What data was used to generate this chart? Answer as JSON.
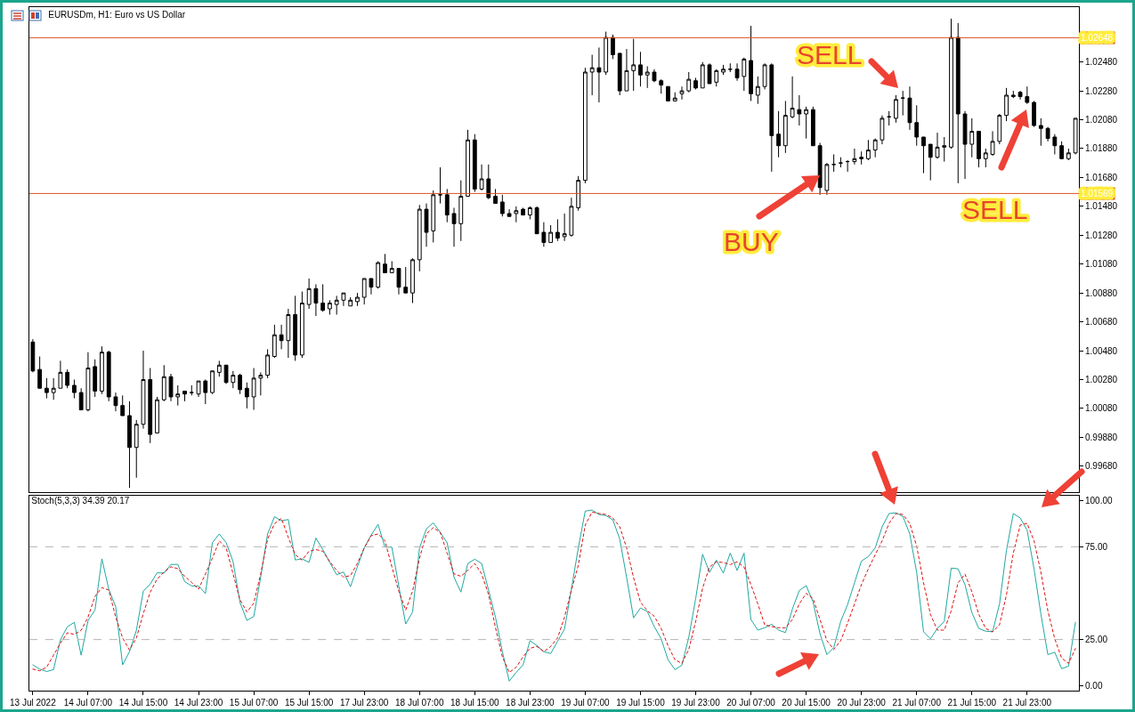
{
  "chart_data": [
    {
      "type": "candlestick",
      "title": "EURUSDm, H1: Euro vs US Dollar",
      "tick_labels": "y",
      "color": "#000000",
      "categories": [
        null,
        null,
        null,
        null,
        null,
        null,
        null,
        null,
        null,
        null,
        null,
        null,
        null,
        null,
        null,
        null,
        null,
        null,
        null,
        null,
        null,
        null,
        null,
        null,
        null,
        null,
        null,
        null,
        null,
        null,
        null,
        null,
        null,
        null,
        null,
        null,
        null,
        null,
        null,
        null,
        null,
        null,
        null,
        null,
        null,
        null,
        null,
        null,
        null,
        null,
        null,
        null,
        null,
        null,
        null,
        null,
        null,
        null,
        null,
        null,
        null,
        null,
        null,
        null,
        null,
        null,
        null,
        null,
        null,
        null,
        null,
        null,
        null,
        null,
        null,
        null,
        null,
        null,
        null,
        null,
        null,
        null,
        null,
        null,
        null,
        null,
        null,
        null,
        null,
        null,
        null,
        null,
        null,
        null,
        null,
        null,
        null,
        null,
        null,
        null,
        null,
        null,
        null,
        null,
        null,
        null,
        null,
        null,
        null,
        null,
        null,
        null,
        null,
        null,
        null,
        null,
        null,
        null,
        null,
        null,
        null,
        null,
        null,
        null,
        null,
        null,
        null,
        null,
        null,
        null,
        null,
        null,
        null,
        null,
        null,
        null,
        null,
        null,
        null,
        null,
        null,
        null,
        null,
        null,
        null,
        null,
        null,
        null,
        null,
        null,
        null,
        null
      ],
      "ohlc": [
        [
          1.0054,
          1.0056,
          1.0033,
          1.0034
        ],
        [
          1.0035,
          1.0044,
          1.0022,
          1.0022
        ],
        [
          1.0022,
          1.0029,
          1.0015,
          1.0019
        ],
        [
          1.0019,
          1.0029,
          1.0014,
          1.0022
        ],
        [
          1.0022,
          1.0041,
          1.0022,
          1.0033
        ],
        [
          1.0033,
          1.0035,
          1.0022,
          1.0024
        ],
        [
          1.0024,
          1.0028,
          1.0015,
          1.0019
        ],
        [
          1.0019,
          1.0022,
          1.0007,
          1.0007
        ],
        [
          1.0007,
          1.0047,
          1.0006,
          1.0036
        ],
        [
          1.0037,
          1.0042,
          1.0016,
          1.002
        ],
        [
          1.002,
          1.0051,
          1.0018,
          1.0047
        ],
        [
          1.0047,
          1.0048,
          1.0013,
          1.0016
        ],
        [
          1.0016,
          1.0019,
          1.0006,
          1.001
        ],
        [
          1.001,
          1.0017,
          1.0003,
          1.0003
        ],
        [
          1.0003,
          1.0013,
          0.9953,
          0.9981
        ],
        [
          0.9981,
          1.0,
          0.996,
          0.9997
        ],
        [
          0.9997,
          1.0048,
          0.9994,
          1.0028
        ],
        [
          1.0028,
          1.0036,
          0.9984,
          0.999
        ],
        [
          0.9991,
          1.0016,
          0.9991,
          1.0014
        ],
        [
          1.0014,
          1.0038,
          1.0013,
          1.003
        ],
        [
          1.003,
          1.0032,
          1.0013,
          1.0016
        ],
        [
          1.0016,
          1.0024,
          1.001,
          1.0018
        ],
        [
          1.002,
          1.002,
          1.0013,
          1.0018
        ],
        [
          1.0019,
          1.0024,
          1.0017,
          1.0019
        ],
        [
          1.0018,
          1.0027,
          1.0016,
          1.0027
        ],
        [
          1.0027,
          1.0028,
          1.0011,
          1.0019
        ],
        [
          1.0019,
          1.0034,
          1.0018,
          1.0034
        ],
        [
          1.0033,
          1.0041,
          1.003,
          1.0038
        ],
        [
          1.0038,
          1.0038,
          1.0025,
          1.0026
        ],
        [
          1.0026,
          1.0034,
          1.0022,
          1.0031
        ],
        [
          1.0031,
          1.0032,
          1.0018,
          1.0021
        ],
        [
          1.0022,
          1.0026,
          1.0008,
          1.0016
        ],
        [
          1.0016,
          1.0036,
          1.0007,
          1.0029
        ],
        [
          1.0029,
          1.0033,
          1.0017,
          1.0031
        ],
        [
          1.0031,
          1.0049,
          1.0029,
          1.0045
        ],
        [
          1.0044,
          1.0066,
          1.0043,
          1.0059
        ],
        [
          1.0059,
          1.0066,
          1.0049,
          1.0055
        ],
        [
          1.0055,
          1.0077,
          1.0043,
          1.0073
        ],
        [
          1.0073,
          1.0086,
          1.0041,
          1.0045
        ],
        [
          1.0045,
          1.0089,
          1.0043,
          1.0081
        ],
        [
          1.008,
          1.0098,
          1.0077,
          1.0091
        ],
        [
          1.0091,
          1.0094,
          1.0072,
          1.0081
        ],
        [
          1.0081,
          1.0094,
          1.0075,
          1.0076
        ],
        [
          1.0077,
          1.0083,
          1.0073,
          1.0081
        ],
        [
          1.008,
          1.0086,
          1.0073,
          1.0083
        ],
        [
          1.0083,
          1.0088,
          1.0079,
          1.0088
        ],
        [
          1.0079,
          1.0085,
          1.0079,
          1.0083
        ],
        [
          1.0082,
          1.0088,
          1.0079,
          1.0085
        ],
        [
          1.0085,
          1.0098,
          1.008,
          1.0098
        ],
        [
          1.0098,
          1.0098,
          1.0087,
          1.0092
        ],
        [
          1.0092,
          1.011,
          1.0091,
          1.0109
        ],
        [
          1.0108,
          1.0115,
          1.0102,
          1.0102
        ],
        [
          1.0102,
          1.011,
          1.0102,
          1.0105
        ],
        [
          1.0105,
          1.0105,
          1.0087,
          1.0092
        ],
        [
          1.0092,
          1.0106,
          1.0088,
          1.0088
        ],
        [
          1.0088,
          1.0112,
          1.0081,
          1.0111
        ],
        [
          1.0111,
          1.0149,
          1.0103,
          1.0146
        ],
        [
          1.0146,
          1.015,
          1.012,
          1.013
        ],
        [
          1.0131,
          1.0159,
          1.0123,
          1.0156
        ],
        [
          1.0156,
          1.0175,
          1.015,
          1.0156
        ],
        [
          1.0156,
          1.016,
          1.0137,
          1.0142
        ],
        [
          1.0143,
          1.0147,
          1.012,
          1.0136
        ],
        [
          1.0136,
          1.0166,
          1.0124,
          1.0155
        ],
        [
          1.0155,
          1.0201,
          1.0155,
          1.0194
        ],
        [
          1.0194,
          1.0198,
          1.0158,
          1.016
        ],
        [
          1.016,
          1.0177,
          1.0159,
          1.0167
        ],
        [
          1.0167,
          1.0177,
          1.0153,
          1.0154
        ],
        [
          1.0155,
          1.016,
          1.015,
          1.015
        ],
        [
          1.0151,
          1.0156,
          1.0141,
          1.0143
        ],
        [
          1.0143,
          1.0146,
          1.0141,
          1.0141
        ],
        [
          1.0143,
          1.0148,
          1.0137,
          1.0145
        ],
        [
          1.0146,
          1.0147,
          1.0142,
          1.0142
        ],
        [
          1.0142,
          1.0148,
          1.0139,
          1.0147
        ],
        [
          1.0147,
          1.0148,
          1.0129,
          1.0129
        ],
        [
          1.013,
          1.0137,
          1.012,
          1.0123
        ],
        [
          1.0123,
          1.0135,
          1.0123,
          1.013
        ],
        [
          1.013,
          1.0139,
          1.0124,
          1.0126
        ],
        [
          1.0127,
          1.0143,
          1.0124,
          1.0129
        ],
        [
          1.0128,
          1.0154,
          1.0127,
          1.0148
        ],
        [
          1.0147,
          1.0169,
          1.0145,
          1.0166
        ],
        [
          1.0166,
          1.0244,
          1.0164,
          1.0241
        ],
        [
          1.0241,
          1.0253,
          1.0225,
          1.0244
        ],
        [
          1.0244,
          1.0258,
          1.022,
          1.0241
        ],
        [
          1.0241,
          1.0269,
          1.0239,
          1.0265
        ],
        [
          1.0265,
          1.0267,
          1.025,
          1.0253
        ],
        [
          1.0254,
          1.0254,
          1.0225,
          1.0228
        ],
        [
          1.0228,
          1.0257,
          1.0228,
          1.0242
        ],
        [
          1.0242,
          1.0264,
          1.0228,
          1.0246
        ],
        [
          1.0246,
          1.0255,
          1.0231,
          1.0239
        ],
        [
          1.0239,
          1.0245,
          1.023,
          1.0241
        ],
        [
          1.0241,
          1.0243,
          1.0234,
          1.0235
        ],
        [
          1.0235,
          1.0236,
          1.0226,
          1.0232
        ],
        [
          1.0231,
          1.0231,
          1.0221,
          1.0221
        ],
        [
          1.0221,
          1.0227,
          1.0221,
          1.0223
        ],
        [
          1.0226,
          1.0231,
          1.0222,
          1.0228
        ],
        [
          1.0228,
          1.0241,
          1.0227,
          1.0236
        ],
        [
          1.0235,
          1.0237,
          1.0229,
          1.023
        ],
        [
          1.023,
          1.0248,
          1.023,
          1.0246
        ],
        [
          1.0246,
          1.0247,
          1.0233,
          1.0233
        ],
        [
          1.0234,
          1.0243,
          1.0231,
          1.0242
        ],
        [
          1.0241,
          1.0246,
          1.0239,
          1.0243
        ],
        [
          1.0243,
          1.0247,
          1.0241,
          1.0243
        ],
        [
          1.0243,
          1.0247,
          1.0235,
          1.0237
        ],
        [
          1.0238,
          1.0251,
          1.0228,
          1.025
        ],
        [
          1.0249,
          1.0273,
          1.0221,
          1.0226
        ],
        [
          1.0225,
          1.0238,
          1.0219,
          1.0231
        ],
        [
          1.0231,
          1.0247,
          1.0229,
          1.0246
        ],
        [
          1.0246,
          1.0247,
          1.0172,
          1.0197
        ],
        [
          1.0198,
          1.0214,
          1.0182,
          1.019
        ],
        [
          1.019,
          1.0221,
          1.0185,
          1.0211
        ],
        [
          1.021,
          1.0238,
          1.0209,
          1.0216
        ],
        [
          1.0215,
          1.0225,
          1.0204,
          1.0212
        ],
        [
          1.0212,
          1.0217,
          1.0195,
          1.0215
        ],
        [
          1.0215,
          1.0217,
          1.019,
          1.019
        ],
        [
          1.019,
          1.0192,
          1.0156,
          1.0161
        ],
        [
          1.0159,
          1.0178,
          1.0156,
          1.0177
        ],
        [
          1.0177,
          1.0184,
          1.0172,
          1.0177
        ],
        [
          1.0178,
          1.0182,
          1.0175,
          1.0178
        ],
        [
          1.0179,
          1.018,
          1.0172,
          1.0179
        ],
        [
          1.0179,
          1.0188,
          1.0177,
          1.0181
        ],
        [
          1.0182,
          1.0186,
          1.0177,
          1.0181
        ],
        [
          1.0181,
          1.0194,
          1.018,
          1.0187
        ],
        [
          1.0187,
          1.0195,
          1.0182,
          1.0194
        ],
        [
          1.0194,
          1.0211,
          1.0191,
          1.0209
        ],
        [
          1.021,
          1.0214,
          1.0204,
          1.021
        ],
        [
          1.0209,
          1.0225,
          1.0206,
          1.0222
        ],
        [
          1.0223,
          1.0228,
          1.0211,
          1.0223
        ],
        [
          1.0223,
          1.0231,
          1.0201,
          1.0206
        ],
        [
          1.0206,
          1.0218,
          1.019,
          1.0196
        ],
        [
          1.0196,
          1.0196,
          1.0171,
          1.019
        ],
        [
          1.0191,
          1.0191,
          1.0166,
          1.0182
        ],
        [
          1.0182,
          1.0199,
          1.0181,
          1.0189
        ],
        [
          1.0189,
          1.0196,
          1.0179,
          1.019
        ],
        [
          1.0189,
          1.0278,
          1.0188,
          1.0265
        ],
        [
          1.0265,
          1.0275,
          1.0164,
          1.0212
        ],
        [
          1.0212,
          1.0214,
          1.0167,
          1.0191
        ],
        [
          1.0191,
          1.0209,
          1.0182,
          1.02
        ],
        [
          1.02,
          1.02,
          1.0175,
          1.0181
        ],
        [
          1.0181,
          1.0188,
          1.0175,
          1.0185
        ],
        [
          1.0184,
          1.02,
          1.0183,
          1.0193
        ],
        [
          1.0193,
          1.0212,
          1.0191,
          1.0211
        ],
        [
          1.0211,
          1.023,
          1.0207,
          1.0225
        ],
        [
          1.0224,
          1.0228,
          1.0223,
          1.0225
        ],
        [
          1.0227,
          1.0228,
          1.0222,
          1.0224
        ],
        [
          1.0224,
          1.0231,
          1.0219,
          1.022
        ],
        [
          1.022,
          1.0221,
          1.0203,
          1.0204
        ],
        [
          1.0204,
          1.0209,
          1.019,
          1.0202
        ],
        [
          1.0202,
          1.0203,
          1.0193,
          1.0195
        ],
        [
          1.0196,
          1.0198,
          1.0184,
          1.019
        ],
        [
          1.019,
          1.0193,
          1.0181,
          1.0181
        ],
        [
          1.0181,
          1.0188,
          1.018,
          1.0185
        ],
        [
          1.0185,
          1.0209,
          1.0184,
          1.0209
        ]
      ],
      "ylim": [
        0.995,
        1.0286
      ],
      "yticks": [
        {
          "value": 0.9968,
          "label": "0.99680"
        },
        {
          "value": 0.9988,
          "label": "0.99880"
        },
        {
          "value": 1.0008,
          "label": "1.00080"
        },
        {
          "value": 1.0028,
          "label": "1.00280"
        },
        {
          "value": 1.0048,
          "label": "1.00480"
        },
        {
          "value": 1.0068,
          "label": "1.00680"
        },
        {
          "value": 1.0088,
          "label": "1.00880"
        },
        {
          "value": 1.0108,
          "label": "1.01080"
        },
        {
          "value": 1.0128,
          "label": "1.01280"
        },
        {
          "value": 1.0148,
          "label": "1.01480"
        },
        {
          "value": 1.0168,
          "label": "1.01680"
        },
        {
          "value": 1.0188,
          "label": "1.01880"
        },
        {
          "value": 1.0208,
          "label": "1.02080"
        },
        {
          "value": 1.0228,
          "label": "1.02280"
        },
        {
          "value": 1.0248,
          "label": "1.02480"
        }
      ],
      "ref_lines": [
        {
          "axis": "y",
          "value": 1.02648,
          "label": "1.02648",
          "color": "#d9541e"
        },
        {
          "axis": "y",
          "value": 1.01569,
          "label": "1.01569",
          "color": "#d9541e"
        }
      ],
      "annotations": [
        "SELL",
        "BUY",
        "SELL"
      ]
    },
    {
      "type": "line",
      "title": "Stoch(5,3,3) 34.39 20.17",
      "categories": [
        "13 Jul 2022",
        null,
        null,
        null,
        null,
        null,
        null,
        null,
        "14 Jul 07:00",
        null,
        null,
        null,
        null,
        null,
        null,
        null,
        "14 Jul 15:00",
        null,
        null,
        null,
        null,
        null,
        null,
        null,
        "14 Jul 23:00",
        null,
        null,
        null,
        null,
        null,
        null,
        null,
        "15 Jul 07:00",
        null,
        null,
        null,
        null,
        null,
        null,
        null,
        "15 Jul 15:00",
        null,
        null,
        null,
        null,
        null,
        null,
        null,
        "17 Jul 23:00",
        null,
        null,
        null,
        null,
        null,
        null,
        null,
        "18 Jul 07:00",
        null,
        null,
        null,
        null,
        null,
        null,
        null,
        "18 Jul 15:00",
        null,
        null,
        null,
        null,
        null,
        null,
        null,
        "18 Jul 23:00",
        null,
        null,
        null,
        null,
        null,
        null,
        null,
        "19 Jul 07:00",
        null,
        null,
        null,
        null,
        null,
        null,
        null,
        "19 Jul 15:00",
        null,
        null,
        null,
        null,
        null,
        null,
        null,
        "19 Jul 23:00",
        null,
        null,
        null,
        null,
        null,
        null,
        null,
        "20 Jul 07:00",
        null,
        null,
        null,
        null,
        null,
        null,
        null,
        "20 Jul 15:00",
        null,
        null,
        null,
        null,
        null,
        null,
        null,
        "20 Jul 23:00",
        null,
        null,
        null,
        null,
        null,
        null,
        null,
        "21 Jul 07:00",
        null,
        null,
        null,
        null,
        null,
        null,
        null,
        "21 Jul 15:00",
        null,
        null,
        null,
        null,
        null,
        null,
        null,
        "21 Jul 23:00",
        null,
        null,
        null,
        null,
        null,
        null,
        null
      ],
      "series": [
        {
          "color": "#20a8a0",
          "line_style": "solid",
          "values": [
            11.4,
            9.1,
            7.8,
            8.8,
            25.0,
            31.9,
            34.3,
            16.6,
            35.3,
            40.9,
            68.5,
            52.1,
            42.7,
            11.4,
            18.5,
            30.0,
            51.1,
            54.9,
            61.0,
            60.8,
            65.5,
            65.5,
            56.2,
            53.9,
            53.9,
            49.8,
            77.2,
            81.9,
            77.2,
            67.0,
            45.0,
            35.3,
            37.5,
            58.6,
            81.9,
            91.2,
            89.0,
            89.7,
            67.9,
            68.5,
            66.6,
            79.7,
            73.5,
            66.6,
            59.9,
            61.4,
            53.5,
            64.2,
            74.4,
            81.3,
            87.1,
            74.8,
            74.8,
            53.9,
            33.4,
            39.9,
            74.4,
            84.7,
            87.9,
            82.8,
            77.2,
            58.6,
            50.6,
            66.0,
            68.3,
            66.0,
            51.7,
            37.1,
            18.5,
            2.6,
            7.3,
            11.4,
            24.4,
            21.8,
            18.5,
            17.5,
            24.1,
            30.6,
            52.1,
            74.4,
            94.2,
            94.8,
            92.4,
            91.8,
            89.5,
            79.2,
            58.4,
            36.7,
            42.0,
            40.1,
            32.0,
            25.4,
            14.1,
            8.8,
            11.2,
            26.3,
            47.1,
            71.0,
            61.2,
            67.8,
            60.8,
            71.6,
            62.2,
            71.6,
            35.8,
            30.1,
            31.4,
            33.3,
            30.1,
            28.8,
            41.4,
            51.4,
            54.1,
            45.2,
            28.2,
            16.9,
            20.7,
            34.8,
            43.9,
            55.6,
            67.3,
            69.7,
            74.4,
            85.8,
            92.9,
            93.3,
            91.4,
            82.0,
            61.2,
            29.2,
            25.4,
            31.0,
            34.8,
            63.5,
            63.1,
            54.6,
            39.5,
            31.0,
            29.5,
            29.2,
            44.2,
            72.9,
            92.9,
            90.5,
            83.9,
            63.1,
            38.6,
            16.9,
            18.2,
            9.3,
            10.7,
            34.39
          ]
        },
        {
          "color": "#e01010",
          "line_style": "dotted",
          "values": [
            9.1,
            8.2,
            10.1,
            16.6,
            23.1,
            28.7,
            27.8,
            30.0,
            37.1,
            48.3,
            53.0,
            51.7,
            37.1,
            25.9,
            19.4,
            25.9,
            39.0,
            50.6,
            57.6,
            61.4,
            64.2,
            63.2,
            59.1,
            55.8,
            52.1,
            60.4,
            68.8,
            78.2,
            74.4,
            60.4,
            46.5,
            39.9,
            44.6,
            60.4,
            79.1,
            87.5,
            90.3,
            80.0,
            70.7,
            67.9,
            72.6,
            73.5,
            72.6,
            67.0,
            62.3,
            58.6,
            59.5,
            66.0,
            74.4,
            81.0,
            81.9,
            78.2,
            64.2,
            51.1,
            40.9,
            51.1,
            68.8,
            81.9,
            85.3,
            82.8,
            71.6,
            60.4,
            59.1,
            62.3,
            66.0,
            60.4,
            49.3,
            31.5,
            15.7,
            7.3,
            10.1,
            15.7,
            20.3,
            21.3,
            18.5,
            21.3,
            25.9,
            37.1,
            51.7,
            65.0,
            86.7,
            93.7,
            92.9,
            92.4,
            90.5,
            85.8,
            74.4,
            58.4,
            45.2,
            40.5,
            37.6,
            31.0,
            21.6,
            14.1,
            12.2,
            19.7,
            34.8,
            52.7,
            64.1,
            66.9,
            66.5,
            65.4,
            66.9,
            64.1,
            54.6,
            44.2,
            32.9,
            32.0,
            31.4,
            31.4,
            35.8,
            44.2,
            49.9,
            47.1,
            35.8,
            24.4,
            19.7,
            24.4,
            33.9,
            44.2,
            54.6,
            63.1,
            70.7,
            78.2,
            87.6,
            92.9,
            92.4,
            87.6,
            75.4,
            55.6,
            38.6,
            30.1,
            30.1,
            40.5,
            55.6,
            60.3,
            50.8,
            38.6,
            31.0,
            29.2,
            33.0,
            49.0,
            71.6,
            86.7,
            87.6,
            78.2,
            61.2,
            40.5,
            25.4,
            15.0,
            12.2,
            20.17
          ]
        }
      ],
      "ylim": [
        -2.5,
        102.5
      ],
      "yticks": [
        {
          "value": 0,
          "label": "0.00"
        },
        {
          "value": 25,
          "label": "25.00"
        },
        {
          "value": 75,
          "label": "75.00"
        },
        {
          "value": 100,
          "label": "100.00"
        }
      ],
      "ref_lines": [
        {
          "axis": "y",
          "value": 25,
          "label": null,
          "color": "#b4b4b4",
          "line_style": "dashed"
        },
        {
          "axis": "y",
          "value": 75,
          "label": null,
          "color": "#b4b4b4",
          "line_style": "dashed"
        }
      ]
    }
  ]
}
